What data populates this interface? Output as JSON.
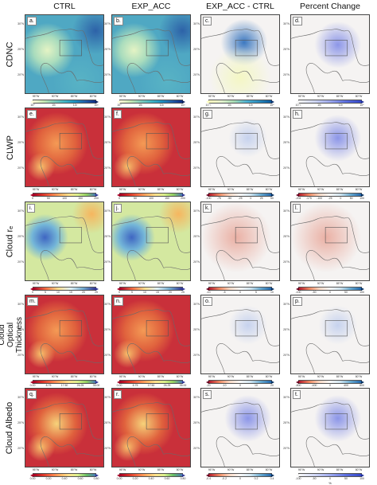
{
  "columns": [
    "CTRL",
    "EXP_ACC",
    "EXP_ACC - CTRL",
    "Percent Change"
  ],
  "rows": [
    {
      "title": "CDNC",
      "labels": [
        "a.",
        "b.",
        "c.",
        "d."
      ],
      "units": [
        "# cm⁻³",
        "# cm⁻³",
        "# cm⁻³",
        "%"
      ],
      "cbar_ticks": [
        [
          "10⁰",
          "10¹",
          "10²",
          "10³"
        ],
        [
          "10⁰",
          "10¹",
          "10²",
          "10³"
        ],
        [
          "10⁻¹",
          "10¹",
          "10³",
          "10⁵"
        ],
        [
          "10⁻¹",
          "10¹",
          "10³",
          "10⁵"
        ]
      ]
    },
    {
      "title": "CLWP",
      "labels": [
        "e.",
        "f.",
        "g.",
        "h."
      ],
      "units": [
        "g m⁻²",
        "g m⁻²",
        "g m⁻²",
        "%"
      ],
      "cbar_ticks": [
        [
          "0",
          "50",
          "100",
          "150",
          "200"
        ],
        [
          "0",
          "50",
          "100",
          "150",
          "200"
        ],
        [
          "-100",
          "-75",
          "-50",
          "-25",
          "0",
          "25",
          "50"
        ],
        [
          "-204",
          "-175",
          "-100",
          "-25",
          "0",
          "50",
          "100"
        ]
      ]
    },
    {
      "title": "Cloud rₑ",
      "labels": [
        "i.",
        "j.",
        "k.",
        "l."
      ],
      "units": [
        "μm",
        "μm",
        "μm",
        "%"
      ],
      "cbar_ticks": [
        [
          "0",
          "5",
          "10",
          "15",
          "20",
          "25"
        ],
        [
          "0",
          "5",
          "10",
          "15",
          "20",
          "25"
        ],
        [
          "-10",
          "-5",
          "0",
          "5",
          "10"
        ],
        [
          "-100",
          "-50",
          "0",
          "50",
          "100"
        ]
      ]
    },
    {
      "title": "Cloud Optical Thickness",
      "labels": [
        "m.",
        "n.",
        "o.",
        "p."
      ],
      "units": [
        "",
        "",
        "",
        "%"
      ],
      "cbar_ticks": [
        [
          "0.00",
          "8.75",
          "17.50",
          "26.25",
          "35.00"
        ],
        [
          "0.00",
          "8.75",
          "17.50",
          "26.25",
          "35.00"
        ],
        [
          "-20",
          "-10",
          "0",
          "10",
          "20"
        ],
        [
          "-800",
          "-400",
          "0",
          "400",
          "800"
        ]
      ]
    },
    {
      "title": "Cloud Albedo",
      "labels": [
        "q.",
        "r.",
        "s.",
        "t."
      ],
      "units": [
        "",
        "",
        "",
        "%"
      ],
      "cbar_ticks": [
        [
          "0.00",
          "0.20",
          "0.40",
          "0.60",
          "0.80"
        ],
        [
          "0.00",
          "0.20",
          "0.40",
          "0.60",
          "0.80"
        ],
        [
          "-0.4",
          "-0.2",
          "0",
          "0.2",
          "0.4"
        ],
        [
          "-100",
          "-50",
          "0",
          "50",
          "100"
        ]
      ]
    }
  ],
  "map_ticks": {
    "lon": [
      "95°W",
      "90°W",
      "85°W",
      "80°W"
    ],
    "lat": [
      "30°N",
      "25°N",
      "20°N"
    ]
  },
  "colors": {
    "cdnc_low": "#e9f5c9",
    "cdnc_mid": "#5fb8c4",
    "cdnc_high": "#2a5fa3",
    "red_dark": "#a50f15",
    "red_mid": "#d7301f",
    "orange": "#fdae61",
    "yellow": "#ffffbf",
    "green": "#a6d96a",
    "blue": "#3f6ec5",
    "div_blue": "#5d6fe0",
    "div_white": "#f4f4f8",
    "div_red": "#d6604d"
  }
}
